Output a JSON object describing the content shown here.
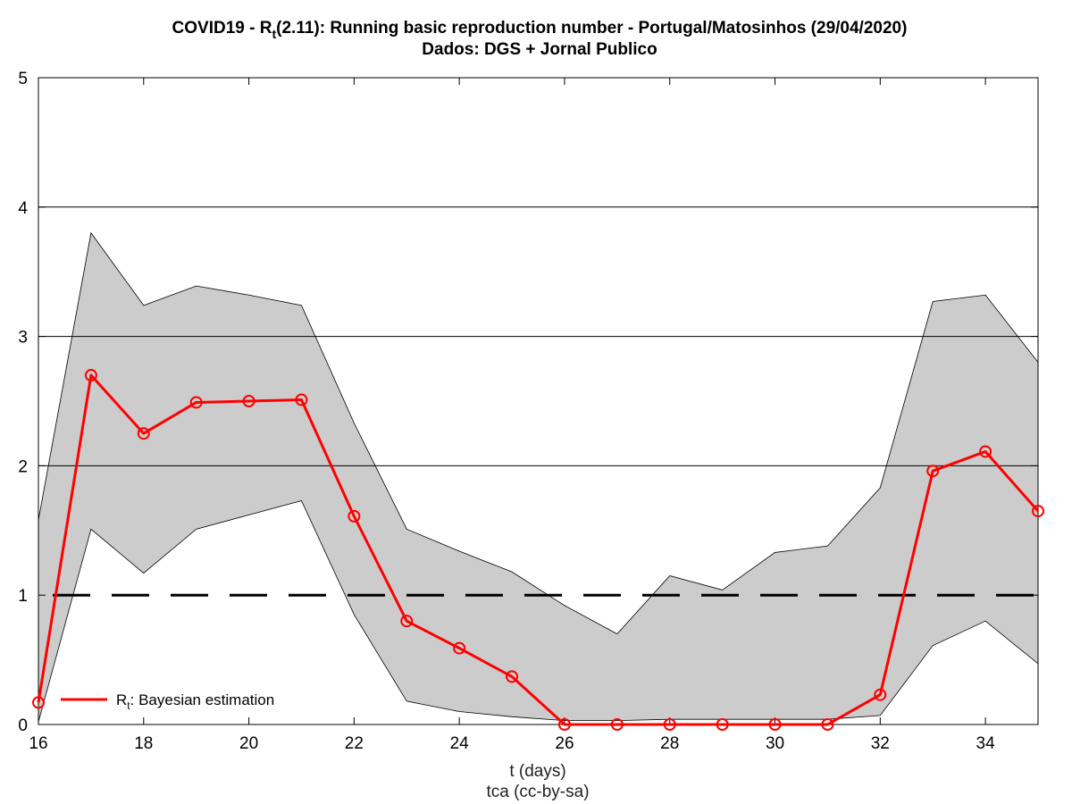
{
  "chart_data": {
    "type": "line",
    "title_main": "COVID19 - R",
    "title_sub": "t",
    "title_rest": "(2.11): Running basic reproduction number - Portugal/Matosinhos (29/04/2020)",
    "subtitle": "Dados: DGS + Jornal Publico",
    "xlabel": "t (days)",
    "credit": "tca (cc-by-sa)",
    "ylabel": "",
    "xlim": [
      16,
      35
    ],
    "ylim": [
      0,
      5
    ],
    "x_ticks": [
      "16",
      "18",
      "20",
      "22",
      "24",
      "26",
      "28",
      "30",
      "32",
      "34"
    ],
    "y_ticks": [
      "0",
      "1",
      "2",
      "3",
      "4",
      "5"
    ],
    "grid": "horizontal at y = 2, 3, 4",
    "reference_line": {
      "y": 1,
      "style": "dashed"
    },
    "x": [
      16,
      17,
      18,
      19,
      20,
      21,
      22,
      23,
      24,
      25,
      26,
      27,
      28,
      29,
      30,
      31,
      32,
      33,
      34,
      35
    ],
    "series": [
      {
        "name_main": "R",
        "name_sub": "t",
        "name_rest": ": Bayesian estimation",
        "color": "#ff0000",
        "values": [
          0.17,
          2.7,
          2.25,
          2.49,
          2.5,
          2.51,
          1.61,
          0.8,
          0.59,
          0.37,
          0.0,
          0.0,
          0.0,
          0.0,
          0.0,
          0.0,
          0.23,
          1.96,
          2.11,
          1.65
        ]
      }
    ],
    "band": {
      "color": "#cccccc",
      "upper": [
        1.58,
        3.8,
        3.24,
        3.39,
        3.32,
        3.24,
        2.33,
        1.51,
        1.34,
        1.18,
        0.92,
        0.7,
        1.15,
        1.04,
        1.33,
        1.38,
        1.83,
        3.27,
        3.32,
        2.8
      ],
      "lower": [
        0.02,
        1.51,
        1.17,
        1.51,
        1.62,
        1.73,
        0.85,
        0.18,
        0.1,
        0.06,
        0.03,
        0.03,
        0.04,
        0.04,
        0.04,
        0.04,
        0.07,
        0.61,
        0.8,
        0.47
      ]
    },
    "legend_position": "bottom-left"
  }
}
